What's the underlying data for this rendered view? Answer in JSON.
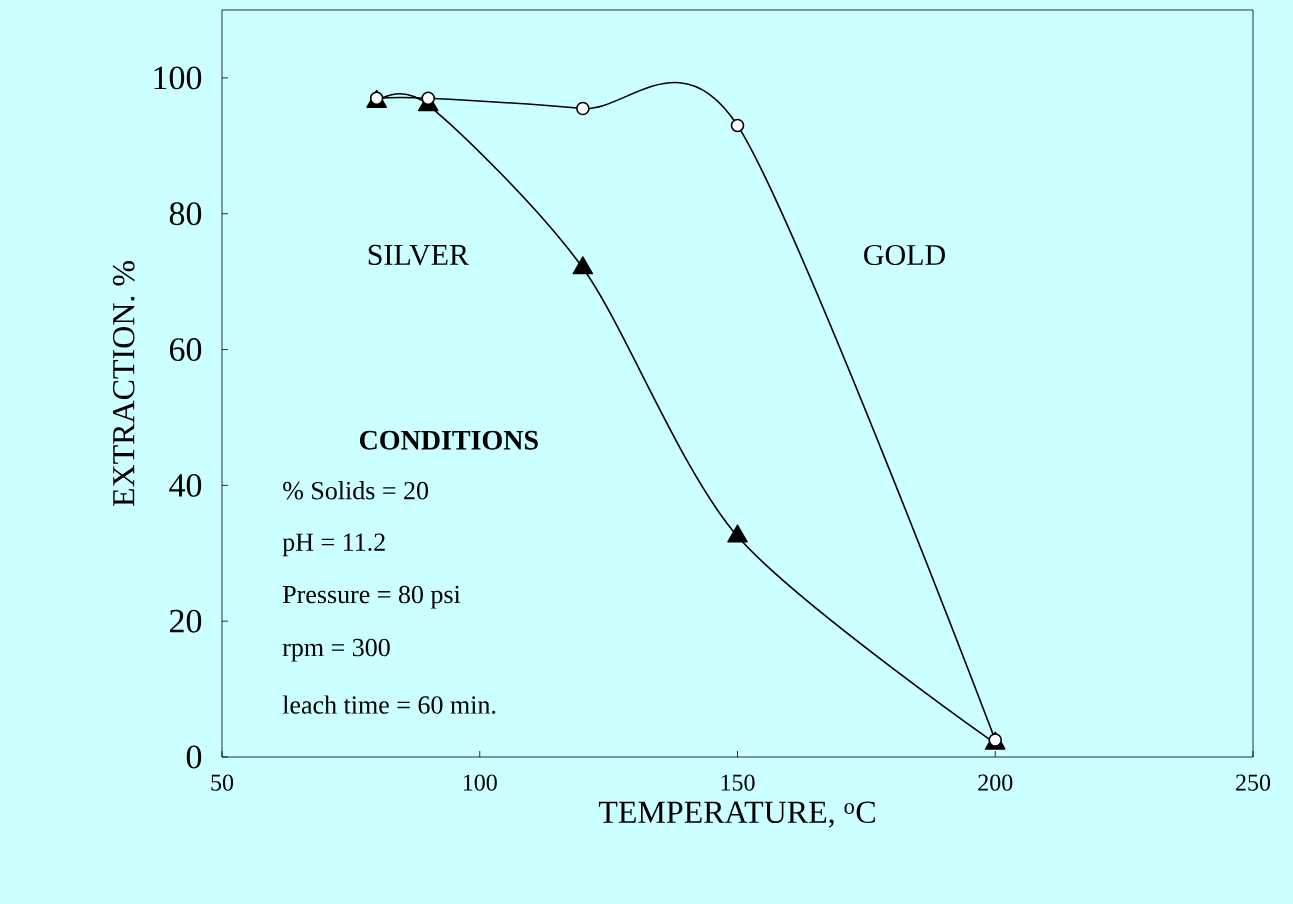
{
  "chart_data": {
    "type": "line",
    "xlabel": "TEMPERATURE, $^{o}$C",
    "ylabel": "EXTRACTION. %",
    "xlim": [
      50,
      250
    ],
    "xticks": [
      50,
      100,
      150,
      200,
      250
    ],
    "ylim": [
      0,
      110
    ],
    "yticks": [
      0,
      20,
      40,
      60,
      80,
      100
    ],
    "grid": false,
    "legend": false,
    "line_style": "solid",
    "series": [
      {
        "name": "SILVER",
        "color": "#000000",
        "marker": "triangle",
        "x": [
          80,
          90,
          120,
          150,
          200
        ],
        "values": [
          96.5,
          96,
          72,
          32.5,
          2
        ]
      },
      {
        "name": "GOLD",
        "color": "#000000",
        "marker": "circle",
        "x": [
          80,
          90,
          120,
          150,
          200
        ],
        "values": [
          97,
          97,
          95.5,
          93,
          2.5
        ]
      }
    ],
    "annotations": [
      "CONDITIONS",
      "% Solids = 20",
      "pH = 11.2",
      "Pressure = 80 psi",
      "rpm = 300",
      "leach time = 60 min."
    ]
  }
}
